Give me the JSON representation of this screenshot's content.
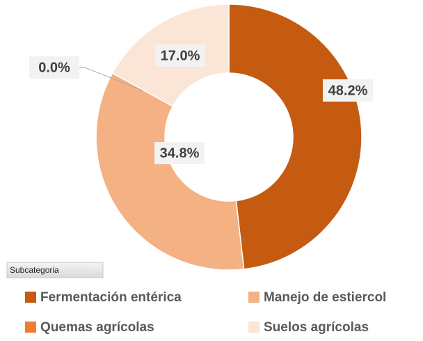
{
  "chart_data": {
    "type": "donut",
    "categories": [
      "Fermentación entérica",
      "Manejo de estiercol",
      "Quemas agrícolas",
      "Suelos agrícolas"
    ],
    "values": [
      48.2,
      34.8,
      0.0,
      17.0
    ],
    "value_labels": [
      "48.2%",
      "34.8%",
      "0.0%",
      "17.0%"
    ],
    "colors": [
      "#c55a11",
      "#f4b183",
      "#ed7d31",
      "#fbe5d6"
    ],
    "legend_title": "Subcategoria"
  }
}
